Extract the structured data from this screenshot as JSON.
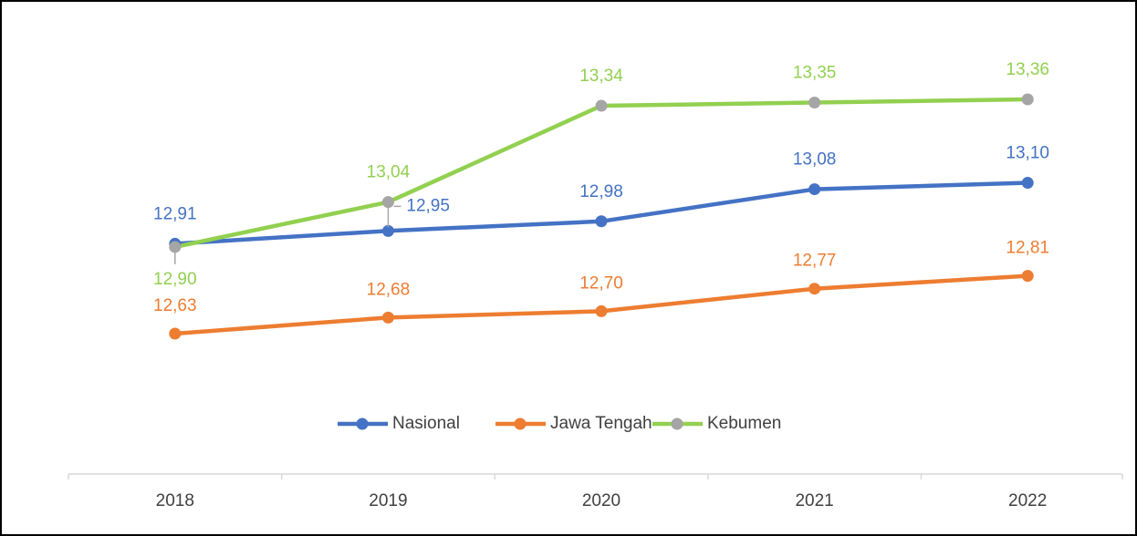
{
  "chart_data": {
    "type": "line",
    "categories": [
      "2018",
      "2019",
      "2020",
      "2021",
      "2022"
    ],
    "series": [
      {
        "name": "Nasional",
        "color": "#4472c4",
        "marker_color": "#4472c4",
        "values": [
          12.91,
          12.95,
          12.98,
          13.08,
          13.1
        ],
        "value_labels": [
          "12,91",
          "12,95",
          "12,98",
          "13,08",
          "13,10"
        ]
      },
      {
        "name": "Jawa Tengah",
        "color": "#ed7d31",
        "marker_color": "#ed7d31",
        "values": [
          12.63,
          12.68,
          12.7,
          12.77,
          12.81
        ],
        "value_labels": [
          "12,63",
          "12,68",
          "12,70",
          "12,77",
          "12,81"
        ]
      },
      {
        "name": "Kebumen",
        "color": "#92d050",
        "marker_color": "#a5a5a5",
        "values": [
          12.9,
          13.04,
          13.34,
          13.35,
          13.36
        ],
        "value_labels": [
          "12,90",
          "13,04",
          "13,34",
          "13,35",
          "13,36"
        ]
      }
    ],
    "legend": "bottom"
  }
}
